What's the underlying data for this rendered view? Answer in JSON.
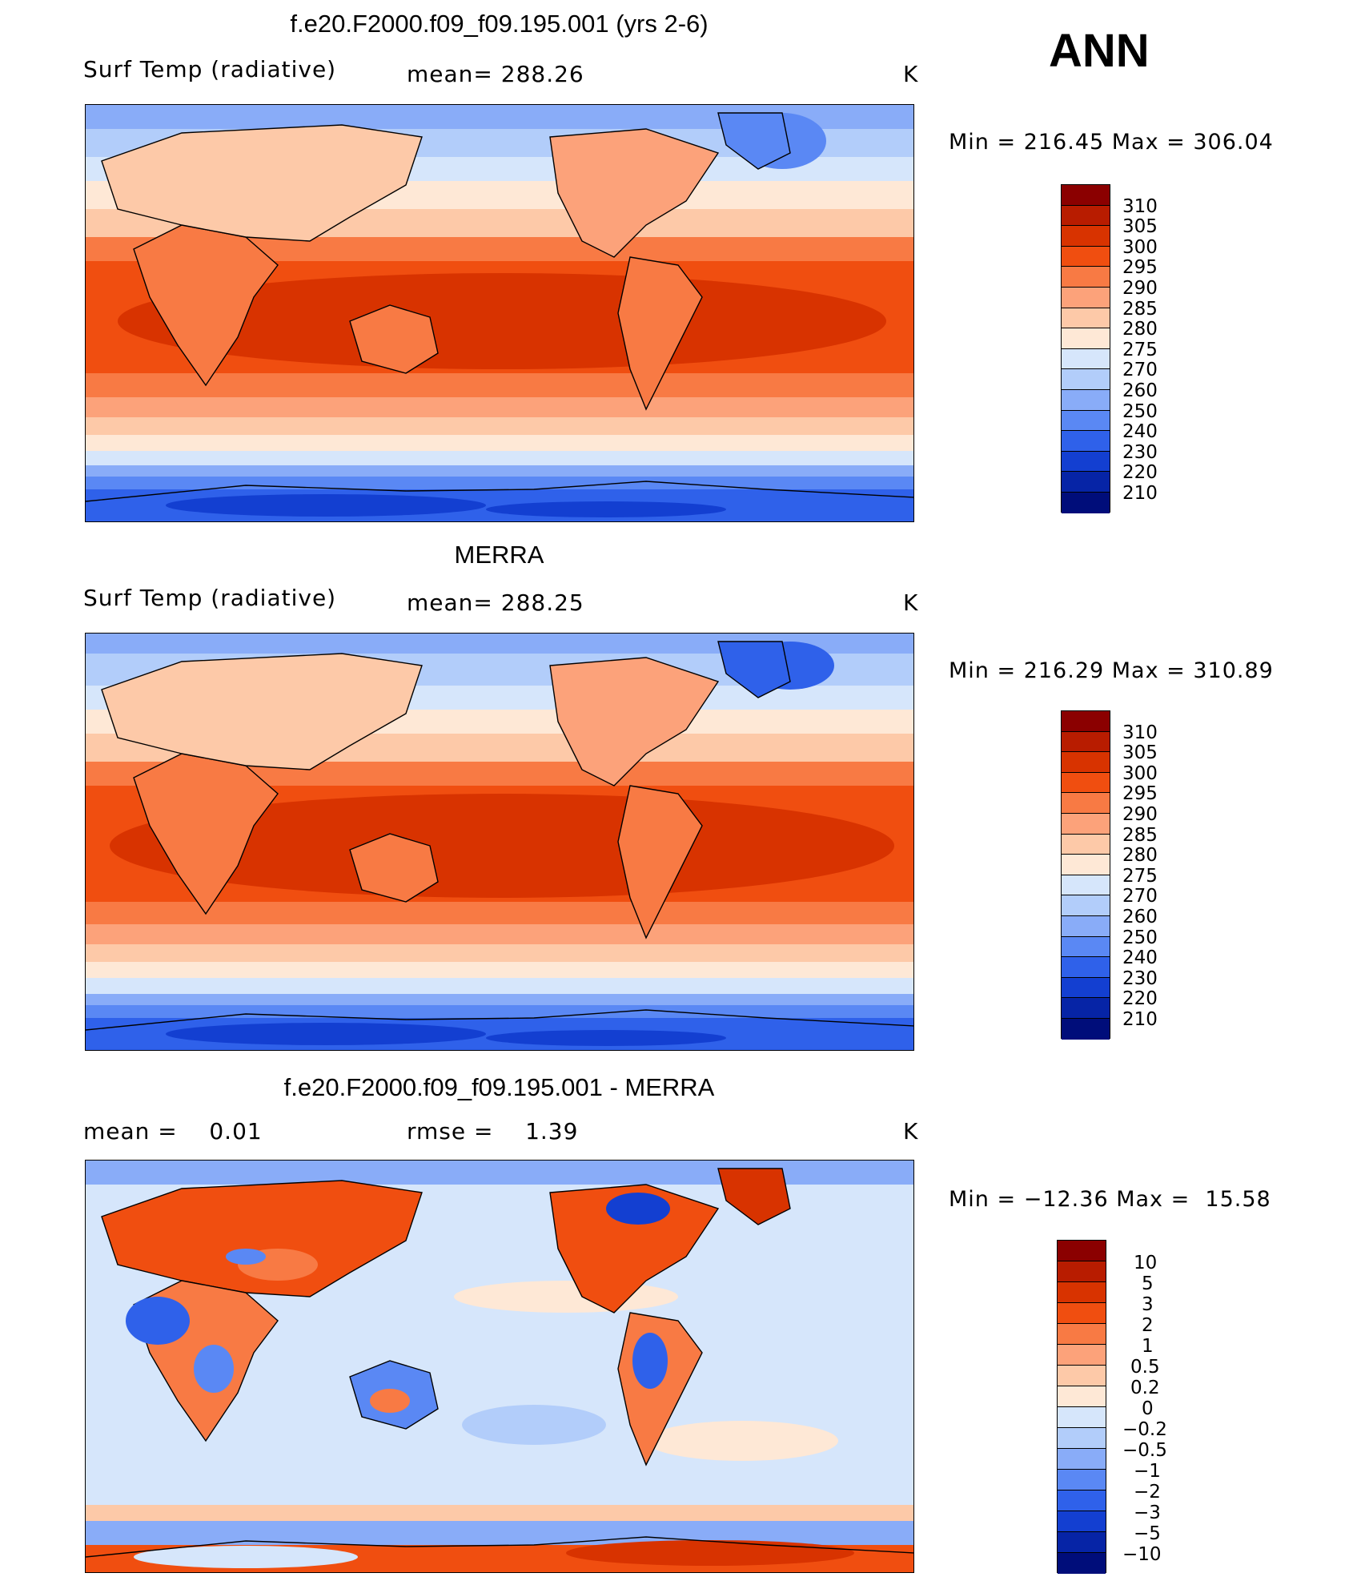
{
  "season": "ANN",
  "panels": [
    {
      "id": "model",
      "title": "f.e20.F2000.f09_f09.195.001 (yrs 2-6)",
      "left_label": "Surf Temp (radiative)",
      "center_label": "mean= 288.26",
      "units": "K",
      "minmax": "Min = 216.45 Max = 306.04"
    },
    {
      "id": "obs",
      "title": "MERRA",
      "left_label": "Surf Temp (radiative)",
      "center_label": "mean= 288.25",
      "units": "K",
      "minmax": "Min = 216.29 Max = 310.89"
    },
    {
      "id": "diff",
      "title": "f.e20.F2000.f09_f09.195.001 - MERRA",
      "left_label": "mean =    0.01",
      "center_label": "rmse =    1.39",
      "units": "K",
      "minmax": "Min = −12.36 Max =  15.58"
    }
  ],
  "colorbars": {
    "abs": {
      "labels": [
        "310",
        "305",
        "300",
        "295",
        "290",
        "285",
        "280",
        "275",
        "270",
        "260",
        "250",
        "240",
        "230",
        "220",
        "210"
      ],
      "colors": [
        "#8b0000",
        "#b81c00",
        "#d83300",
        "#f04e10",
        "#f87a44",
        "#fca27a",
        "#fdc9a8",
        "#fee8d6",
        "#d6e6fb",
        "#b2cdfa",
        "#89acf8",
        "#5a88f4",
        "#2f61ea",
        "#133fd1",
        "#0624a6",
        "#000d7a"
      ]
    },
    "diff": {
      "labels": [
        "10",
        "5",
        "3",
        "2",
        "1",
        "0.5",
        "0.2",
        "0",
        "−0.2",
        "−0.5",
        "−1",
        "−2",
        "−3",
        "−5",
        "−10"
      ],
      "colors": [
        "#8b0000",
        "#b81c00",
        "#d83300",
        "#f04e10",
        "#f87a44",
        "#fca27a",
        "#fdc9a8",
        "#fee8d6",
        "#d6e6fb",
        "#b2cdfa",
        "#89acf8",
        "#5a88f4",
        "#2f61ea",
        "#133fd1",
        "#0624a6",
        "#000d7a"
      ]
    }
  }
}
